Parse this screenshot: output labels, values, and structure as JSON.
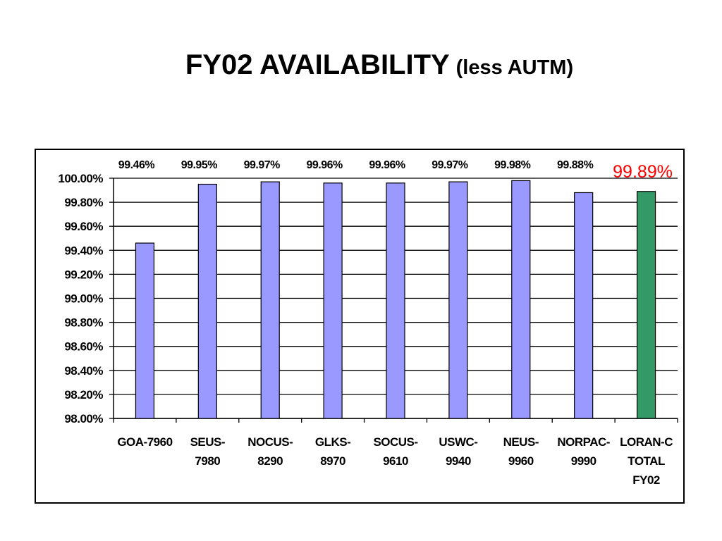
{
  "slide": {
    "title_main": "FY02 AVAILABILITY",
    "title_sub": "(less AUTM)"
  },
  "chart_data": {
    "type": "bar",
    "title": "",
    "xlabel": "",
    "ylabel": "",
    "ylim": [
      98.0,
      100.0
    ],
    "yticks": [
      "98.00%",
      "98.20%",
      "98.40%",
      "98.60%",
      "98.80%",
      "99.00%",
      "99.20%",
      "99.40%",
      "99.60%",
      "99.80%",
      "100.00%"
    ],
    "grid": true,
    "legend": "none",
    "categories": [
      [
        "GOA-7960"
      ],
      [
        "SEUS-",
        "7980"
      ],
      [
        "NOCUS-",
        "8290"
      ],
      [
        "GLKS-",
        "8970"
      ],
      [
        "SOCUS-",
        "9610"
      ],
      [
        "USWC-",
        "9940"
      ],
      [
        "NEUS-",
        "9960"
      ],
      [
        "NORPAC-",
        "9990"
      ],
      [
        "LORAN-C",
        "TOTAL",
        "FY02"
      ]
    ],
    "values": [
      99.46,
      99.95,
      99.97,
      99.96,
      99.96,
      99.97,
      99.98,
      99.88,
      99.89
    ],
    "value_labels": [
      "99.46%",
      "99.95%",
      "99.97%",
      "99.96%",
      "99.96%",
      "99.97%",
      "99.98%",
      "99.88%",
      "99.89%"
    ],
    "bar_colors": [
      "#9999ff",
      "#9999ff",
      "#9999ff",
      "#9999ff",
      "#9999ff",
      "#9999ff",
      "#9999ff",
      "#9999ff",
      "#339966"
    ],
    "total_label_color": "#ff0000"
  }
}
